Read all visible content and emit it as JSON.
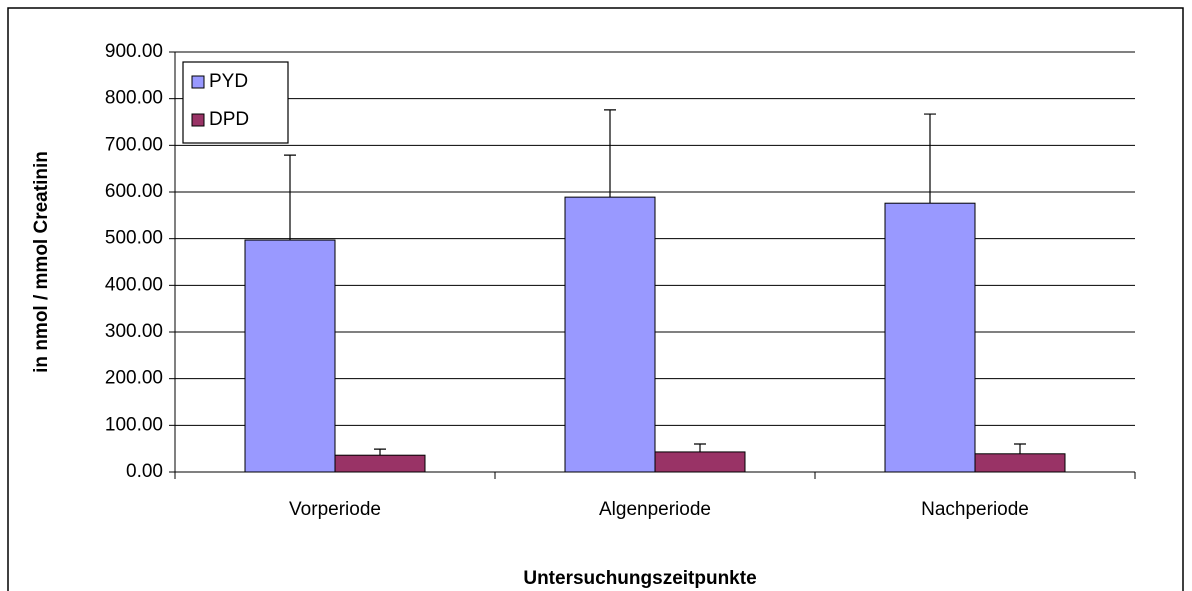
{
  "chart_data": {
    "type": "bar",
    "xlabel": "Untersuchungszeitpunkte",
    "ylabel": "in nmol / mmol Creatinin",
    "categories": [
      "Vorperiode",
      "Algenperiode",
      "Nachperiode"
    ],
    "series": [
      {
        "name": "PYD",
        "color": "#9999ff",
        "values": [
          497,
          589,
          576
        ],
        "errors": [
          182,
          187,
          191
        ]
      },
      {
        "name": "DPD",
        "color": "#993366",
        "values": [
          36,
          43,
          39
        ],
        "errors": [
          13,
          17,
          21
        ]
      }
    ],
    "ylim": [
      0,
      900
    ],
    "yticks": [
      {
        "value": 0,
        "label": "0.00"
      },
      {
        "value": 100,
        "label": "100.00"
      },
      {
        "value": 200,
        "label": "200.00"
      },
      {
        "value": 300,
        "label": "300.00"
      },
      {
        "value": 400,
        "label": "400.00"
      },
      {
        "value": 500,
        "label": "500.00"
      },
      {
        "value": 600,
        "label": "600.00"
      },
      {
        "value": 700,
        "label": "700.00"
      },
      {
        "value": 800,
        "label": "800.00"
      },
      {
        "value": 900,
        "label": "900.00"
      }
    ],
    "grid": true,
    "legend": "top-left"
  }
}
